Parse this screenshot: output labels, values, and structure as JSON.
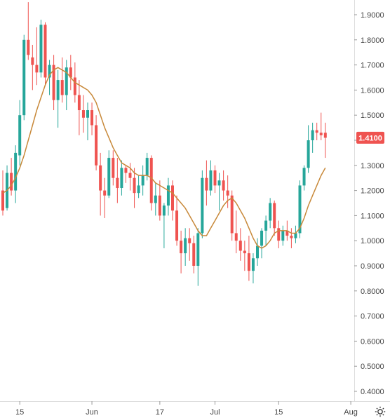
{
  "chart_data": {
    "type": "candlestick",
    "title": "",
    "xlabel": "",
    "ylabel": "",
    "ylim": [
      0.35,
      1.95
    ],
    "grid": false,
    "y_ticks": [
      "0.4000",
      "0.5000",
      "0.6000",
      "0.7000",
      "0.8000",
      "0.9000",
      "1.0000",
      "1.1000",
      "1.2000",
      "1.3000",
      "1.4000",
      "1.5000",
      "1.6000",
      "1.7000",
      "1.8000",
      "1.9000"
    ],
    "x_ticks": [
      {
        "label": "15",
        "index": 4
      },
      {
        "label": "Jun",
        "index": 21
      },
      {
        "label": "17",
        "index": 37
      },
      {
        "label": "Jul",
        "index": 50
      },
      {
        "label": "15",
        "index": 65
      },
      {
        "label": "Aug",
        "index": 82
      }
    ],
    "last_price": "1.4100",
    "colors": {
      "up": "#26a69a",
      "down": "#ef5350",
      "ma": "#c8893a",
      "axis": "#dddddd"
    },
    "candles": [
      [
        1.2,
        1.28,
        1.1,
        1.12
      ],
      [
        1.13,
        1.3,
        1.12,
        1.27
      ],
      [
        1.27,
        1.33,
        1.18,
        1.2
      ],
      [
        1.2,
        1.38,
        1.15,
        1.35
      ],
      [
        1.34,
        1.56,
        1.3,
        1.5
      ],
      [
        1.5,
        1.82,
        1.48,
        1.8
      ],
      [
        1.8,
        1.95,
        1.72,
        1.74
      ],
      [
        1.73,
        1.78,
        1.6,
        1.7
      ],
      [
        1.7,
        1.85,
        1.62,
        1.67
      ],
      [
        1.67,
        1.88,
        1.65,
        1.86
      ],
      [
        1.86,
        1.87,
        1.62,
        1.65
      ],
      [
        1.65,
        1.72,
        1.58,
        1.7
      ],
      [
        1.7,
        1.74,
        1.52,
        1.56
      ],
      [
        1.56,
        1.68,
        1.45,
        1.64
      ],
      [
        1.64,
        1.73,
        1.55,
        1.58
      ],
      [
        1.58,
        1.72,
        1.52,
        1.69
      ],
      [
        1.69,
        1.74,
        1.6,
        1.65
      ],
      [
        1.65,
        1.71,
        1.55,
        1.58
      ],
      [
        1.58,
        1.64,
        1.42,
        1.52
      ],
      [
        1.52,
        1.58,
        1.43,
        1.49
      ],
      [
        1.49,
        1.55,
        1.4,
        1.52
      ],
      [
        1.52,
        1.55,
        1.42,
        1.46
      ],
      [
        1.46,
        1.5,
        1.28,
        1.3
      ],
      [
        1.3,
        1.35,
        1.1,
        1.2
      ],
      [
        1.2,
        1.25,
        1.09,
        1.18
      ],
      [
        1.18,
        1.36,
        1.17,
        1.33
      ],
      [
        1.33,
        1.36,
        1.22,
        1.25
      ],
      [
        1.25,
        1.33,
        1.15,
        1.21
      ],
      [
        1.21,
        1.32,
        1.18,
        1.29
      ],
      [
        1.29,
        1.3,
        1.23,
        1.27
      ],
      [
        1.27,
        1.31,
        1.2,
        1.25
      ],
      [
        1.25,
        1.29,
        1.13,
        1.19
      ],
      [
        1.19,
        1.26,
        1.17,
        1.22
      ],
      [
        1.22,
        1.3,
        1.18,
        1.26
      ],
      [
        1.26,
        1.35,
        1.24,
        1.33
      ],
      [
        1.33,
        1.34,
        1.12,
        1.15
      ],
      [
        1.15,
        1.23,
        1.1,
        1.18
      ],
      [
        1.18,
        1.24,
        1.08,
        1.1
      ],
      [
        1.1,
        1.15,
        0.97,
        1.14
      ],
      [
        1.14,
        1.25,
        1.1,
        1.22
      ],
      [
        1.22,
        1.24,
        1.08,
        1.12
      ],
      [
        1.12,
        1.18,
        0.98,
        1.0
      ],
      [
        1.0,
        1.04,
        0.87,
        0.95
      ],
      [
        0.95,
        1.05,
        0.9,
        1.01
      ],
      [
        1.01,
        1.05,
        0.92,
        0.99
      ],
      [
        0.99,
        1.02,
        0.87,
        0.9
      ],
      [
        0.9,
        1.05,
        0.82,
        1.03
      ],
      [
        1.03,
        1.28,
        1.01,
        1.25
      ],
      [
        1.25,
        1.32,
        1.14,
        1.2
      ],
      [
        1.2,
        1.32,
        1.18,
        1.28
      ],
      [
        1.28,
        1.3,
        1.19,
        1.22
      ],
      [
        1.22,
        1.27,
        1.12,
        1.24
      ],
      [
        1.24,
        1.28,
        1.16,
        1.2
      ],
      [
        1.2,
        1.26,
        1.13,
        1.18
      ],
      [
        1.18,
        1.2,
        1.0,
        1.03
      ],
      [
        1.03,
        1.12,
        0.95,
        1.0
      ],
      [
        1.0,
        1.05,
        0.92,
        0.96
      ],
      [
        0.96,
        1.0,
        0.88,
        0.95
      ],
      [
        0.95,
        1.02,
        0.84,
        0.88
      ],
      [
        0.88,
        0.95,
        0.83,
        0.93
      ],
      [
        0.93,
        1.01,
        0.9,
        0.98
      ],
      [
        0.98,
        1.05,
        0.93,
        1.04
      ],
      [
        1.04,
        1.1,
        0.98,
        1.08
      ],
      [
        1.08,
        1.17,
        1.05,
        1.15
      ],
      [
        1.15,
        1.16,
        1.02,
        1.05
      ],
      [
        1.05,
        1.08,
        0.97,
        1.0
      ],
      [
        1.0,
        1.06,
        0.98,
        1.04
      ],
      [
        1.04,
        1.08,
        1.0,
        1.02
      ],
      [
        1.02,
        1.05,
        0.97,
        1.01
      ],
      [
        1.01,
        1.06,
        0.99,
        1.03
      ],
      [
        1.03,
        1.24,
        1.01,
        1.22
      ],
      [
        1.22,
        1.3,
        1.2,
        1.29
      ],
      [
        1.29,
        1.46,
        1.27,
        1.4
      ],
      [
        1.4,
        1.47,
        1.35,
        1.44
      ],
      [
        1.44,
        1.47,
        1.4,
        1.43
      ],
      [
        1.43,
        1.51,
        1.4,
        1.42
      ],
      [
        1.43,
        1.47,
        1.33,
        1.41
      ]
    ],
    "ma": [
      1.19,
      1.2,
      1.22,
      1.25,
      1.29,
      1.34,
      1.4,
      1.46,
      1.52,
      1.57,
      1.62,
      1.66,
      1.68,
      1.69,
      1.68,
      1.67,
      1.65,
      1.63,
      1.62,
      1.61,
      1.6,
      1.58,
      1.55,
      1.5,
      1.45,
      1.41,
      1.37,
      1.34,
      1.31,
      1.3,
      1.29,
      1.27,
      1.26,
      1.26,
      1.26,
      1.25,
      1.23,
      1.22,
      1.21,
      1.2,
      1.19,
      1.17,
      1.15,
      1.13,
      1.1,
      1.07,
      1.04,
      1.02,
      1.02,
      1.05,
      1.08,
      1.11,
      1.14,
      1.16,
      1.17,
      1.15,
      1.12,
      1.09,
      1.05,
      1.01,
      0.98,
      0.97,
      0.98,
      1.0,
      1.03,
      1.04,
      1.04,
      1.04,
      1.03,
      1.03,
      1.05,
      1.09,
      1.14,
      1.18,
      1.22,
      1.26,
      1.29
    ]
  }
}
